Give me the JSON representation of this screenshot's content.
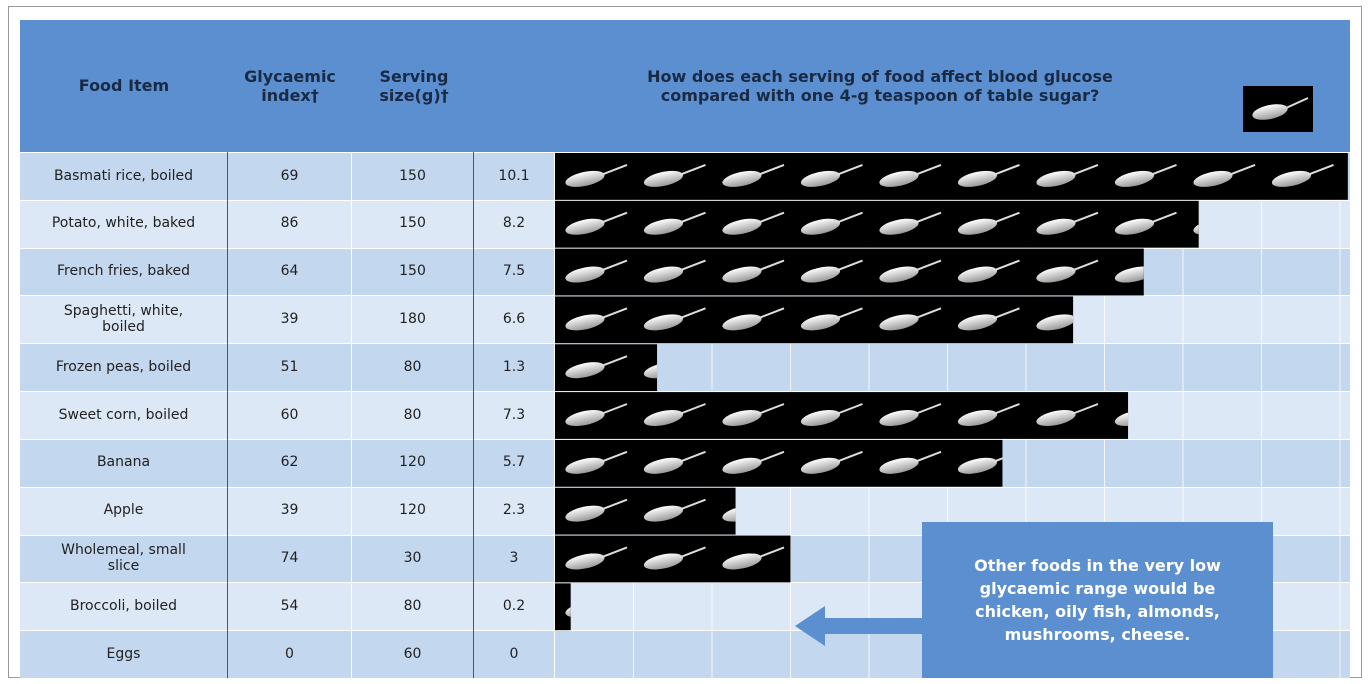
{
  "header": {
    "food_item": "Food Item",
    "glycaemic_index": "Glycaemic index†",
    "serving_size": "Serving size(g)†",
    "question": "How does each serving of food affect blood glucose compared with one 4-g teaspoon of table sugar?"
  },
  "table": {
    "rows": [
      [
        "Basmati rice, boiled",
        69,
        150,
        10.1
      ],
      [
        "Potato, white, baked",
        86,
        150,
        8.2
      ],
      [
        "French fries, baked",
        64,
        150,
        7.5
      ],
      [
        "Spaghetti, white, boiled",
        39,
        180,
        6.6
      ],
      [
        "Frozen peas, boiled",
        51,
        80,
        1.3
      ],
      [
        "Sweet corn, boiled",
        60,
        80,
        7.3
      ],
      [
        "Banana",
        62,
        120,
        5.7
      ],
      [
        "Apple",
        39,
        120,
        2.3
      ],
      [
        "Wholemeal, small slice",
        74,
        30,
        3
      ],
      [
        "Broccoli, boiled",
        54,
        80,
        0.2
      ],
      [
        "Eggs",
        0,
        60,
        0
      ]
    ]
  },
  "callout": "Other foods in the very low glycaemic range would be chicken, oily fish, almonds, mushrooms, cheese."
}
